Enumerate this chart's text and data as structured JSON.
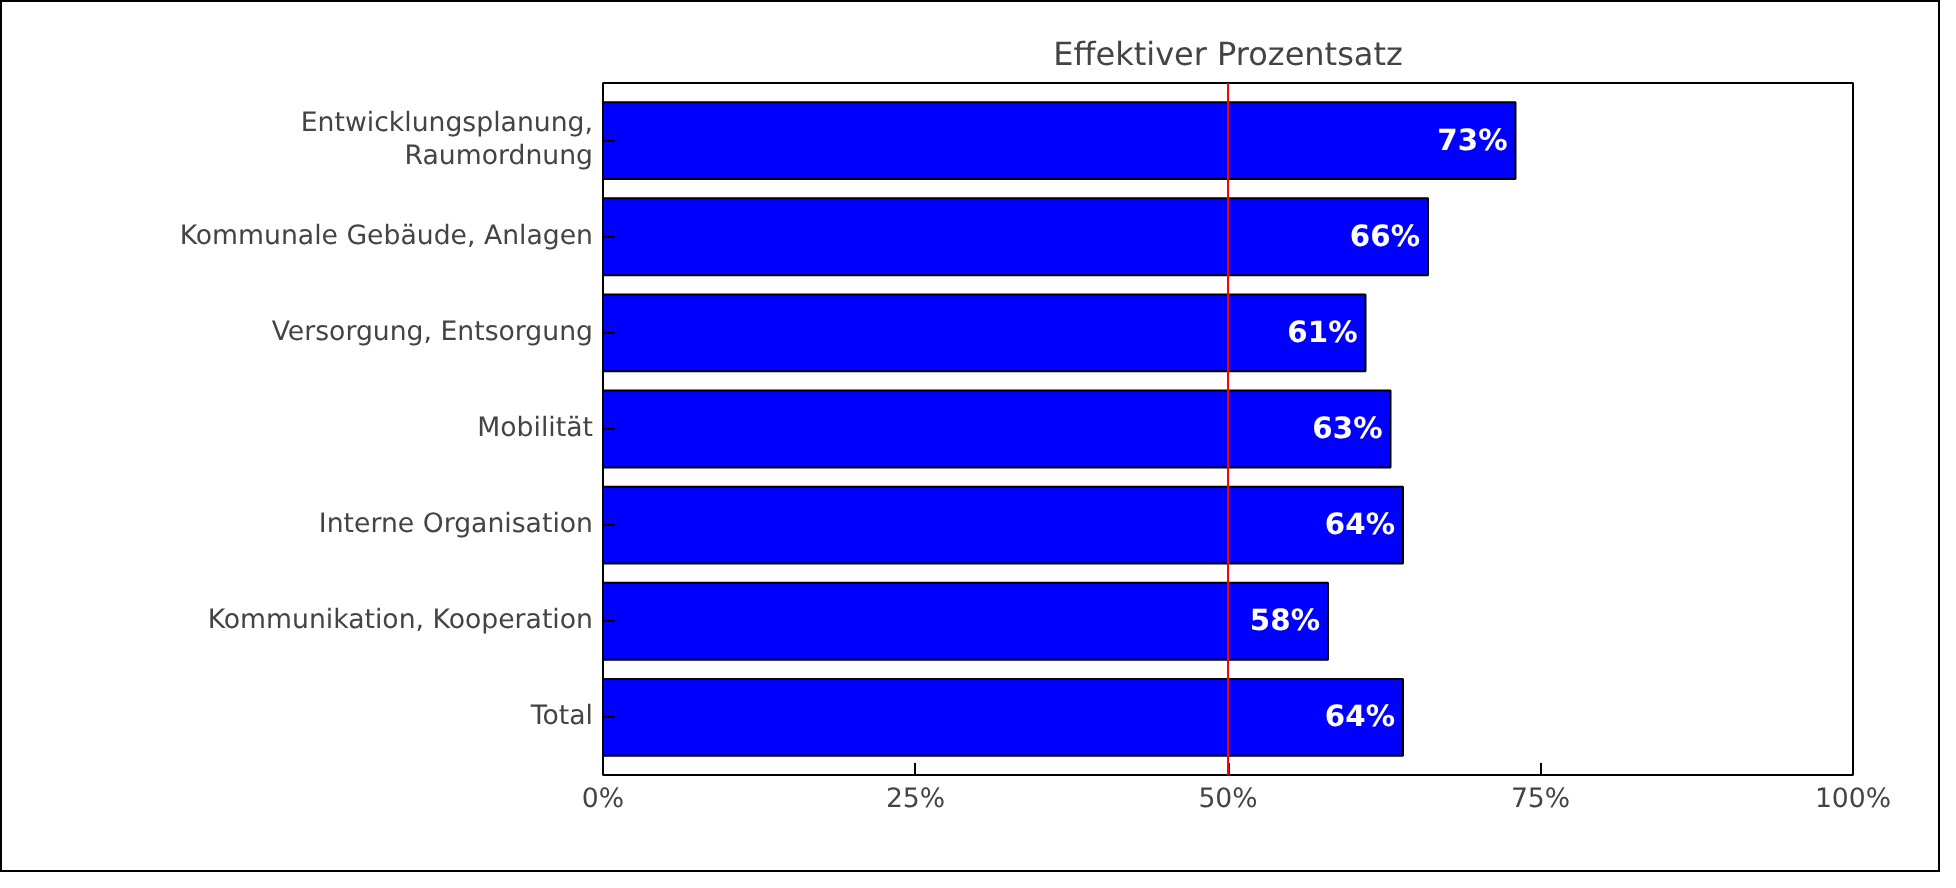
{
  "chart_data": {
    "type": "bar",
    "orientation": "horizontal",
    "title": "Effektiver Prozentsatz",
    "categories": [
      "Entwicklungsplanung,\nRaumordnung",
      "Kommunale Gebäude, Anlagen",
      "Versorgung, Entsorgung",
      "Mobilität",
      "Interne Organisation",
      "Kommunikation, Kooperation",
      "Total"
    ],
    "values": [
      73,
      66,
      61,
      63,
      64,
      58,
      64
    ],
    "value_labels": [
      "73%",
      "66%",
      "61%",
      "63%",
      "64%",
      "58%",
      "64%"
    ],
    "color": "#0000ff",
    "xlim": [
      0,
      100
    ],
    "xticks": [
      {
        "value": 0,
        "label": "0%"
      },
      {
        "value": 25,
        "label": "25%"
      },
      {
        "value": 50,
        "label": "50%"
      },
      {
        "value": 75,
        "label": "75%"
      },
      {
        "value": 100,
        "label": "100%"
      }
    ],
    "ref_lines": [
      {
        "axis": "x",
        "value": 50,
        "label": null,
        "color": "#ff0000"
      }
    ],
    "grid": false
  }
}
